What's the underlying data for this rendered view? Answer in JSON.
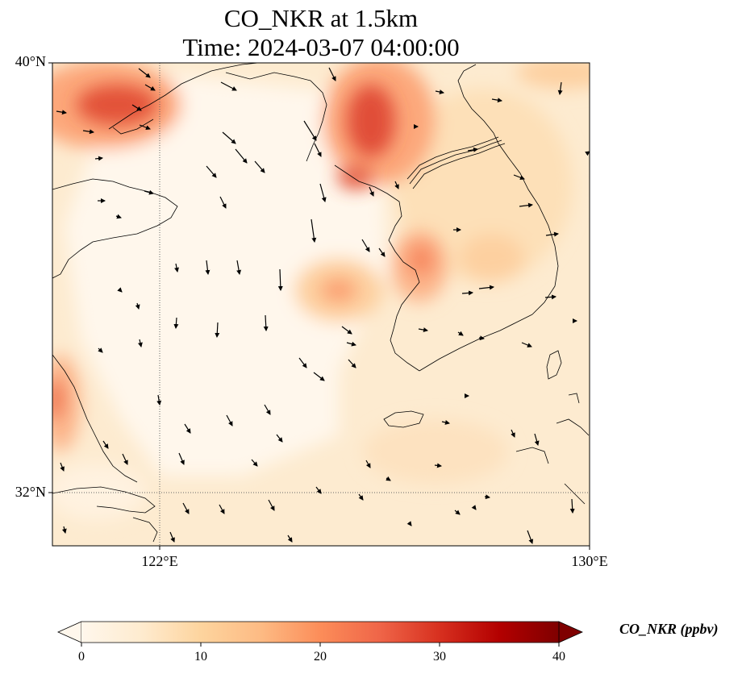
{
  "title": {
    "line1": "CO_NKR at 1.5km",
    "line2": "Time: 2024-03-07 04:00:00"
  },
  "map": {
    "lon_range": [
      120,
      130
    ],
    "lat_range": [
      31,
      40
    ],
    "lat_labels": [
      {
        "value": 40,
        "label": "40°N"
      },
      {
        "value": 32,
        "label": "32°N"
      }
    ],
    "lon_labels": [
      {
        "value": 122,
        "label": "122°E"
      },
      {
        "value": 130,
        "label": "130°E"
      }
    ],
    "gridlines": {
      "lons": [
        122
      ],
      "lats": [
        32
      ],
      "style": "dotted"
    }
  },
  "colorbar": {
    "label": "CO_NKR (ppbv)",
    "min": 0,
    "max": 40,
    "ticks": [
      "0",
      "10",
      "20",
      "30",
      "40"
    ],
    "colormap": "OrRd",
    "extend": "both"
  },
  "colors": {
    "low": "#fff7ec",
    "mid_low": "#fdd49e",
    "mid": "#fc8d59",
    "high": "#d7301f",
    "max": "#7f0000",
    "coast": "#000000",
    "wind": "#000000"
  },
  "wind_arrows_legend": "none"
}
